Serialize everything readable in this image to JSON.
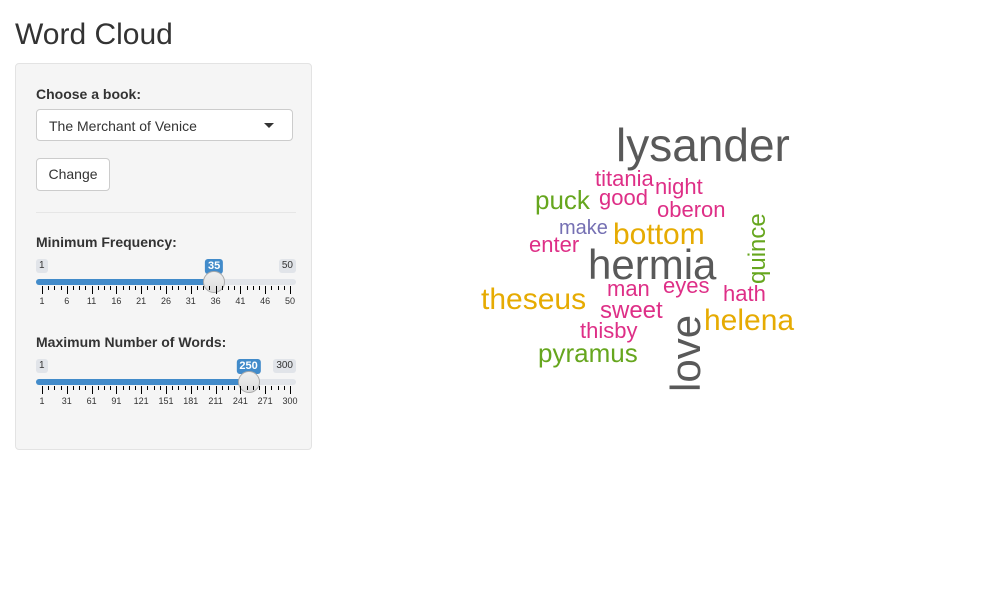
{
  "app": {
    "title": "Word Cloud"
  },
  "sidebar": {
    "book_label": "Choose a book:",
    "book_selected": "The Merchant of Venice",
    "change_button": "Change",
    "min_freq": {
      "label": "Minimum Frequency:",
      "min": 1,
      "max": 50,
      "value": 35,
      "min_label": "1",
      "max_label": "50",
      "value_label": "35",
      "ticks": [
        "1",
        "6",
        "11",
        "16",
        "21",
        "26",
        "31",
        "36",
        "41",
        "46",
        "50"
      ]
    },
    "max_words": {
      "label": "Maximum Number of Words:",
      "min": 1,
      "max": 300,
      "value": 250,
      "min_label": "1",
      "max_label": "300",
      "value_label": "250",
      "ticks": [
        "1",
        "31",
        "61",
        "91",
        "121",
        "151",
        "181",
        "211",
        "241",
        "271",
        "300"
      ]
    }
  },
  "colors": {
    "slider_fill": "#428bca",
    "gray": "#595959",
    "pink": "#de2f87",
    "green": "#66a61e",
    "gold": "#e6ab02",
    "purple": "#7570b3"
  },
  "wordcloud": {
    "words": [
      {
        "text": "lysander",
        "color": "#595959",
        "size": 46
      },
      {
        "text": "hermia",
        "color": "#595959",
        "size": 42
      },
      {
        "text": "love",
        "color": "#595959",
        "size": 42,
        "vertical": true
      },
      {
        "text": "bottom",
        "color": "#e6ab02",
        "size": 30
      },
      {
        "text": "theseus",
        "color": "#e6ab02",
        "size": 30
      },
      {
        "text": "helena",
        "color": "#e6ab02",
        "size": 30
      },
      {
        "text": "pyramus",
        "color": "#66a61e",
        "size": 26
      },
      {
        "text": "puck",
        "color": "#66a61e",
        "size": 26
      },
      {
        "text": "quince",
        "color": "#66a61e",
        "size": 24,
        "vertical": true
      },
      {
        "text": "sweet",
        "color": "#de2f87",
        "size": 24
      },
      {
        "text": "night",
        "color": "#de2f87",
        "size": 22
      },
      {
        "text": "oberon",
        "color": "#de2f87",
        "size": 22
      },
      {
        "text": "titania",
        "color": "#de2f87",
        "size": 22
      },
      {
        "text": "good",
        "color": "#de2f87",
        "size": 22
      },
      {
        "text": "enter",
        "color": "#de2f87",
        "size": 22
      },
      {
        "text": "man",
        "color": "#de2f87",
        "size": 22
      },
      {
        "text": "eyes",
        "color": "#de2f87",
        "size": 22
      },
      {
        "text": "hath",
        "color": "#de2f87",
        "size": 22
      },
      {
        "text": "thisby",
        "color": "#de2f87",
        "size": 22
      },
      {
        "text": "make",
        "color": "#7570b3",
        "size": 20
      }
    ]
  }
}
